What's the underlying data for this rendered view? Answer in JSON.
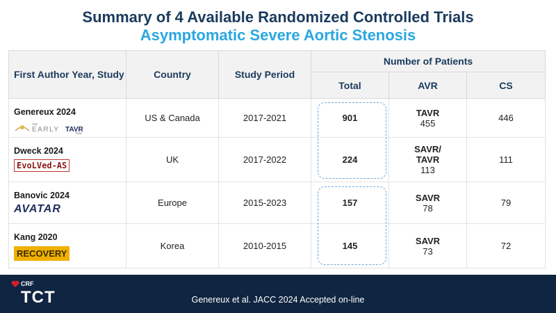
{
  "title": {
    "line1": "Summary of 4 Available Randomized Controlled Trials",
    "line2": "Asymptomatic Severe Aortic Stenosis"
  },
  "table": {
    "headers": {
      "study": "First Author Year, Study",
      "country": "Country",
      "period": "Study Period",
      "patients": "Number of Patients",
      "total": "Total",
      "avr": "AVR",
      "cs": "CS"
    },
    "rows": [
      {
        "author": "Genereux 2024",
        "logo": "THE EARLY TAVR TRIAL",
        "country": "US & Canada",
        "period": "2017-2021",
        "total": "901",
        "avr_type": "TAVR",
        "avr_n": "455",
        "cs": "446"
      },
      {
        "author": "Dweck 2024",
        "logo": "EvoLVed-AS",
        "country": "UK",
        "period": "2017-2022",
        "total": "224",
        "avr_type": "SAVR/ TAVR",
        "avr_n": "113",
        "cs": "111"
      },
      {
        "author": "Banovic 2024",
        "logo": "AVATAR",
        "country": "Europe",
        "period": "2015-2023",
        "total": "157",
        "avr_type": "SAVR",
        "avr_n": "78",
        "cs": "79"
      },
      {
        "author": "Kang 2020",
        "logo": "RECOVERY",
        "country": "Korea",
        "period": "2010-2015",
        "total": "145",
        "avr_type": "SAVR",
        "avr_n": "73",
        "cs": "72"
      }
    ]
  },
  "footer": {
    "citation": "Genereux et al. JACC 2024 Accepted on-line",
    "brand_small": "CRF",
    "brand": "TCT"
  },
  "colors": {
    "title": "#1a3a5c",
    "subtitle": "#2aa7e0",
    "footer": "#0f2541",
    "dash": "#6ea8d8"
  }
}
